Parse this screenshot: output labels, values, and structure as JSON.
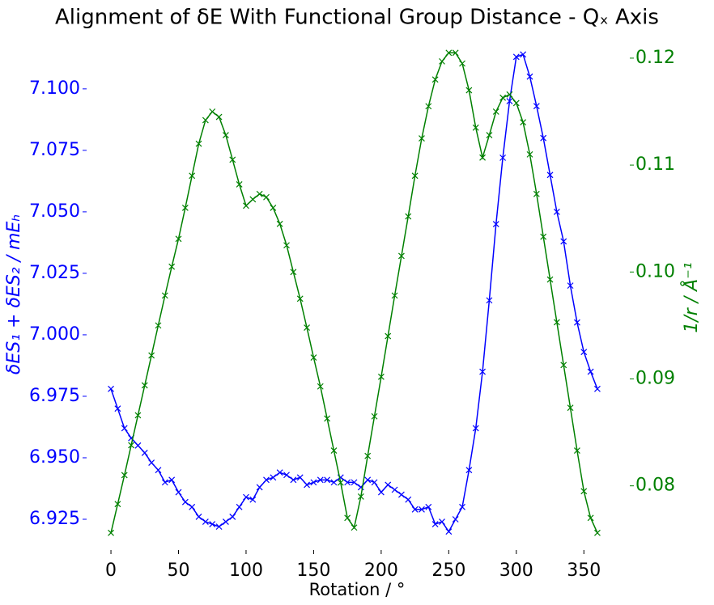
{
  "chart_data": {
    "type": "line",
    "title": "Alignment of δE With Functional Group Distance - Qₓ Axis",
    "xlabel": "Rotation / °",
    "ylabel": "δES₁ + δES₂ / mEₕ",
    "y2label": "1/r / Å⁻¹",
    "x": [
      0,
      5,
      10,
      15,
      20,
      25,
      30,
      35,
      40,
      45,
      50,
      55,
      60,
      65,
      70,
      75,
      80,
      85,
      90,
      95,
      100,
      105,
      110,
      115,
      120,
      125,
      130,
      135,
      140,
      145,
      150,
      155,
      160,
      165,
      170,
      175,
      180,
      185,
      190,
      195,
      200,
      205,
      210,
      215,
      220,
      225,
      230,
      235,
      240,
      245,
      250,
      255,
      260,
      265,
      270,
      275,
      280,
      285,
      290,
      295,
      300,
      305,
      310,
      315,
      320,
      325,
      330,
      335,
      340,
      345,
      350,
      355,
      360
    ],
    "series": [
      {
        "name": "δE",
        "color": "#0000ff",
        "axis": "y",
        "values": [
          6.978,
          6.97,
          6.962,
          6.958,
          6.955,
          6.952,
          6.948,
          6.945,
          6.94,
          6.941,
          6.936,
          6.932,
          6.93,
          6.926,
          6.924,
          6.923,
          6.922,
          6.924,
          6.926,
          6.93,
          6.934,
          6.933,
          6.938,
          6.941,
          6.942,
          6.944,
          6.943,
          6.941,
          6.942,
          6.939,
          6.94,
          6.941,
          6.941,
          6.94,
          6.942,
          6.94,
          6.94,
          6.938,
          6.941,
          6.94,
          6.936,
          6.939,
          6.937,
          6.935,
          6.933,
          6.929,
          6.929,
          6.93,
          6.923,
          6.924,
          6.92,
          6.925,
          6.93,
          6.945,
          6.962,
          6.985,
          7.014,
          7.045,
          7.072,
          7.095,
          7.113,
          7.114,
          7.105,
          7.093,
          7.08,
          7.065,
          7.05,
          7.038,
          7.02,
          7.005,
          6.993,
          6.985,
          6.978
        ]
      },
      {
        "name": "1/r",
        "color": "#008000",
        "axis": "y2",
        "values": [
          0.0756,
          0.0783,
          0.081,
          0.0838,
          0.0866,
          0.0894,
          0.0922,
          0.095,
          0.0978,
          0.1005,
          0.1031,
          0.106,
          0.109,
          0.112,
          0.1142,
          0.115,
          0.1145,
          0.1128,
          0.1105,
          0.1082,
          0.1062,
          0.1068,
          0.1073,
          0.107,
          0.106,
          0.1045,
          0.1025,
          0.1,
          0.0975,
          0.0948,
          0.092,
          0.0893,
          0.0863,
          0.0833,
          0.0803,
          0.077,
          0.0761,
          0.079,
          0.0828,
          0.0865,
          0.0902,
          0.094,
          0.0978,
          0.1015,
          0.1052,
          0.109,
          0.1125,
          0.1155,
          0.118,
          0.1197,
          0.1205,
          0.1205,
          0.1195,
          0.117,
          0.1135,
          0.1107,
          0.1128,
          0.115,
          0.1163,
          0.1166,
          0.1158,
          0.114,
          0.111,
          0.1073,
          0.1033,
          0.0993,
          0.0953,
          0.0913,
          0.0873,
          0.0833,
          0.0795,
          0.077,
          0.0756
        ]
      }
    ],
    "xlim": [
      -18,
      384
    ],
    "xticks": [
      0,
      50,
      100,
      150,
      200,
      250,
      300,
      350
    ],
    "ylim": [
      6.9125,
      7.1164
    ],
    "yticks": [
      6.925,
      {
        "value": 6.95,
        "label": "6.950"
      },
      6.975,
      {
        "value": 7.0,
        "label": "7.000"
      },
      7.025,
      {
        "value": 7.05,
        "label": "7.050"
      },
      7.075,
      {
        "value": 7.1,
        "label": "7.100"
      }
    ],
    "y2lim": [
      0.074,
      0.1209
    ],
    "y2ticks": [
      0.08,
      0.09,
      {
        "value": 0.1,
        "label": "0.10"
      },
      0.11,
      0.12
    ]
  }
}
